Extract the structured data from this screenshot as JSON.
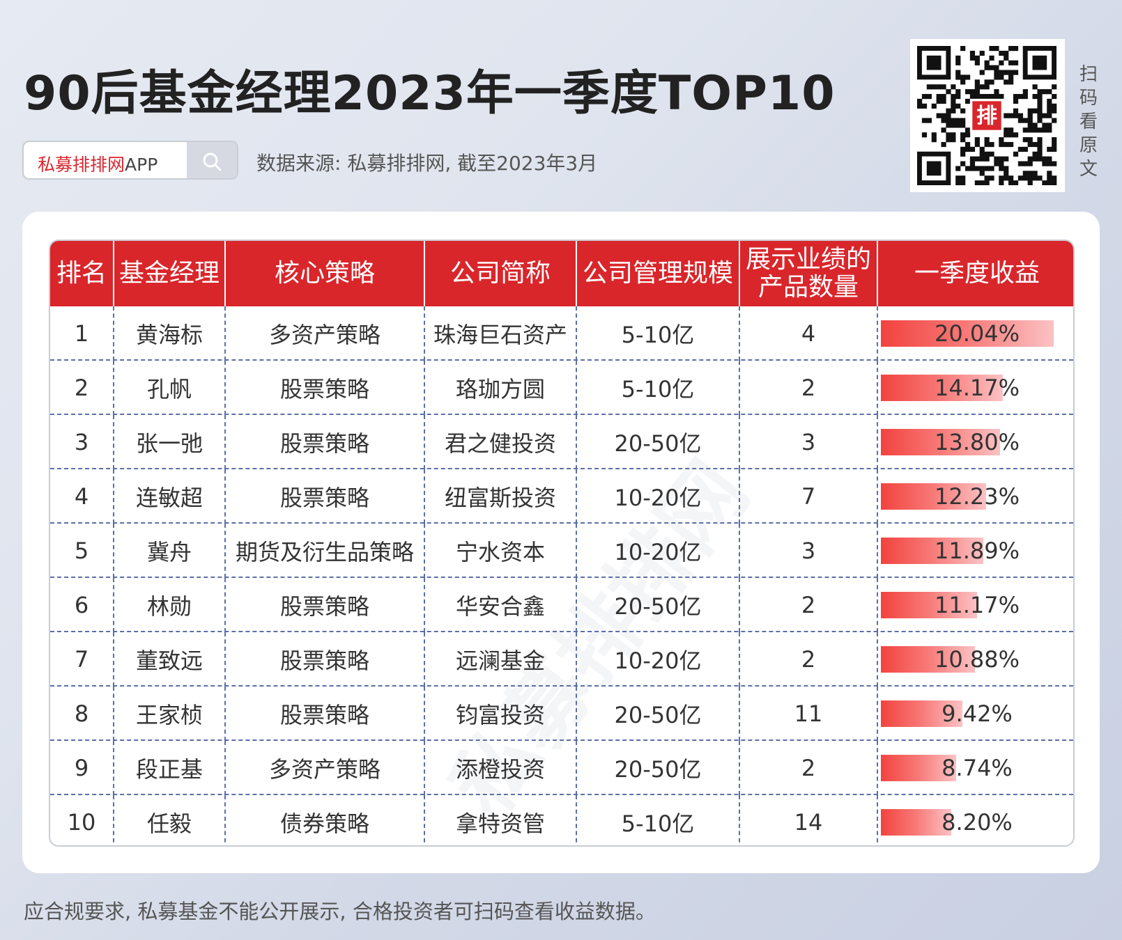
{
  "title": "90后基金经理2023年一季度TOP10",
  "search": {
    "label": "私募排排网",
    "label_suffix": "APP"
  },
  "source": "数据来源: 私募排排网, 截至2023年3月",
  "qr_side_text": [
    "扫",
    "码",
    "看",
    "原",
    "文"
  ],
  "qr_logo_text": "排",
  "watermark": "私募排排网",
  "footer": "应合规要求, 私募基金不能公开展示, 合格投资者可扫码查看收益数据。",
  "colors": {
    "header_red": "#d9262b",
    "bar_start": "#f2433f",
    "bar_end": "#fbc2c4"
  },
  "chart_data": {
    "type": "table",
    "columns": [
      "排名",
      "基金经理",
      "核心策略",
      "公司简称",
      "公司管理规模",
      "展示业绩的产品数量",
      "一季度收益"
    ],
    "header_lines": {
      "展示业绩的产品数量": [
        "展示业绩的",
        "产品数量"
      ]
    },
    "rows": [
      {
        "rank": "1",
        "manager": "黄海标",
        "strategy": "多资产策略",
        "company": "珠海巨石资产",
        "scale": "5-10亿",
        "count": "4",
        "return_text": "20.04%",
        "return": 20.04
      },
      {
        "rank": "2",
        "manager": "孔帆",
        "strategy": "股票策略",
        "company": "珞珈方圆",
        "scale": "5-10亿",
        "count": "2",
        "return_text": "14.17%",
        "return": 14.17
      },
      {
        "rank": "3",
        "manager": "张一弛",
        "strategy": "股票策略",
        "company": "君之健投资",
        "scale": "20-50亿",
        "count": "3",
        "return_text": "13.80%",
        "return": 13.8
      },
      {
        "rank": "4",
        "manager": "连敏超",
        "strategy": "股票策略",
        "company": "纽富斯投资",
        "scale": "10-20亿",
        "count": "7",
        "return_text": "12.23%",
        "return": 12.23
      },
      {
        "rank": "5",
        "manager": "冀舟",
        "strategy": "期货及衍生品策略",
        "company": "宁水资本",
        "scale": "10-20亿",
        "count": "3",
        "return_text": "11.89%",
        "return": 11.89
      },
      {
        "rank": "6",
        "manager": "林勋",
        "strategy": "股票策略",
        "company": "华安合鑫",
        "scale": "20-50亿",
        "count": "2",
        "return_text": "11.17%",
        "return": 11.17
      },
      {
        "rank": "7",
        "manager": "董致远",
        "strategy": "股票策略",
        "company": "远澜基金",
        "scale": "10-20亿",
        "count": "2",
        "return_text": "10.88%",
        "return": 10.88
      },
      {
        "rank": "8",
        "manager": "王家桢",
        "strategy": "股票策略",
        "company": "钧富投资",
        "scale": "20-50亿",
        "count": "11",
        "return_text": "9.42%",
        "return": 9.42
      },
      {
        "rank": "9",
        "manager": "段正基",
        "strategy": "多资产策略",
        "company": "添橙投资",
        "scale": "20-50亿",
        "count": "2",
        "return_text": "8.74%",
        "return": 8.74
      },
      {
        "rank": "10",
        "manager": "任毅",
        "strategy": "债券策略",
        "company": "拿特资管",
        "scale": "5-10亿",
        "count": "14",
        "return_text": "8.20%",
        "return": 8.2
      }
    ]
  }
}
